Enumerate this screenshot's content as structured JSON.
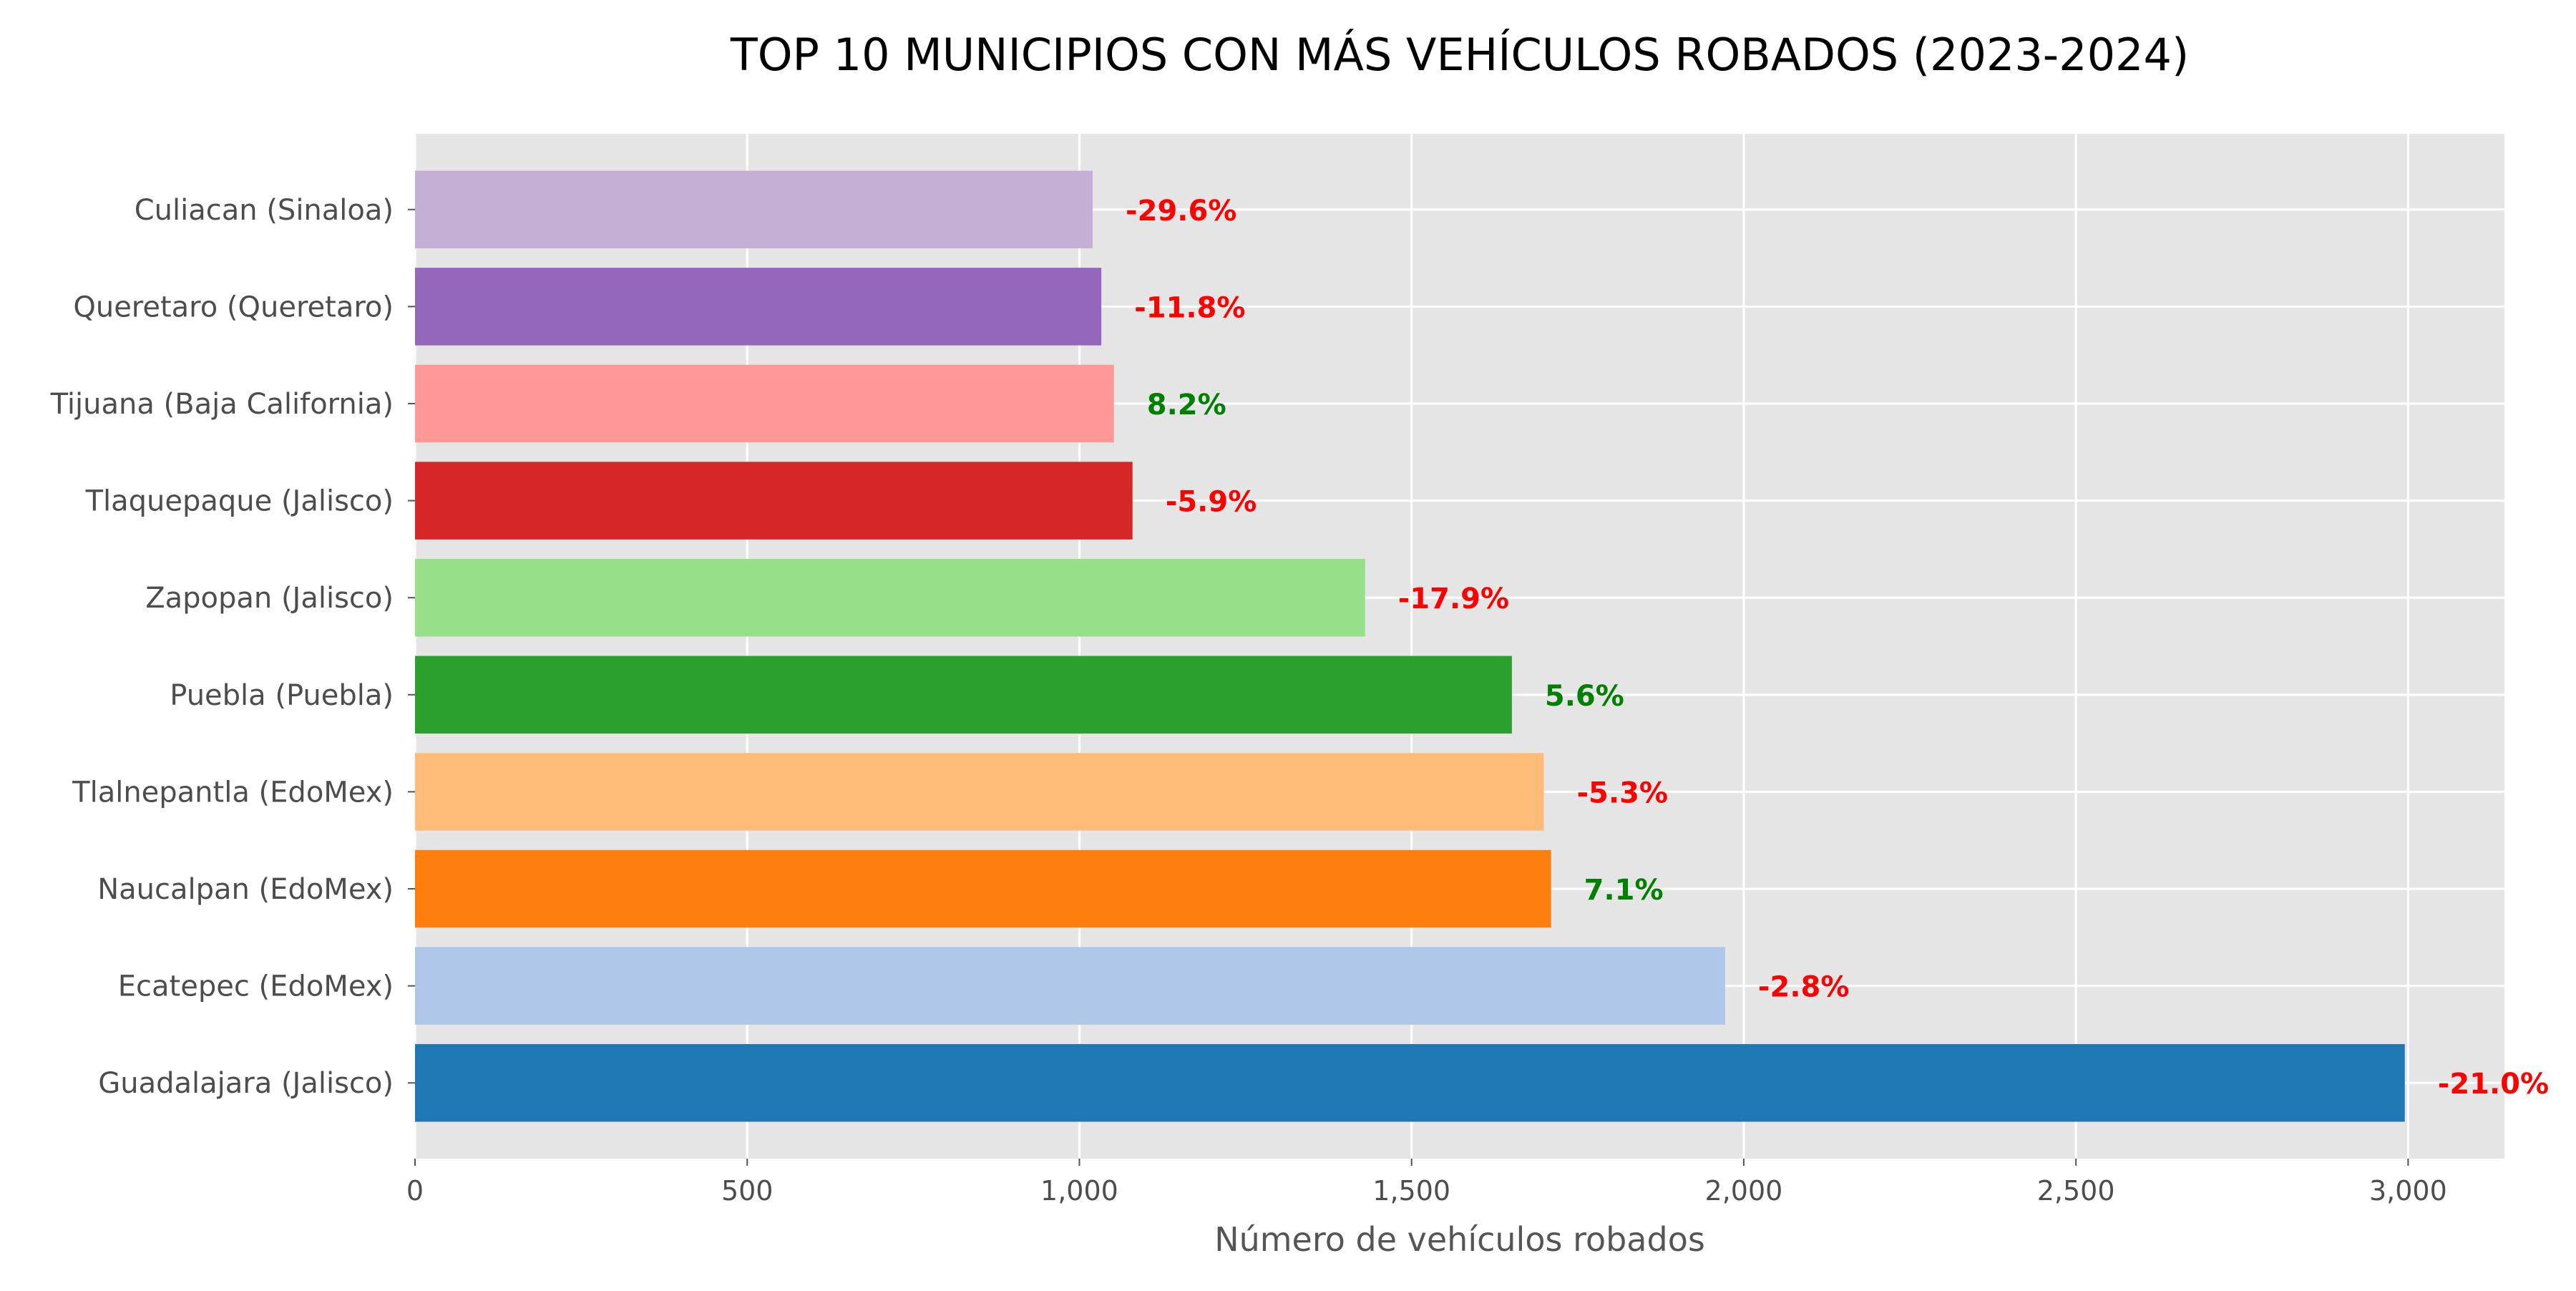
{
  "chart_data": {
    "type": "bar",
    "orientation": "horizontal",
    "title": "TOP 10 MUNICIPIOS CON MÁS VEHÍCULOS ROBADOS (2023-2024)",
    "xlabel": "Número de vehículos robados",
    "ylabel": "",
    "xlim": [
      0,
      3145
    ],
    "x_ticks": [
      0,
      500,
      1000,
      1500,
      2000,
      2500,
      3000
    ],
    "x_tick_labels": [
      "0",
      "500",
      "1,000",
      "1,500",
      "2,000",
      "2,500",
      "3,000"
    ],
    "grid": true,
    "legend": "none",
    "categories": [
      "Guadalajara (Jalisco)",
      "Ecatepec (EdoMex)",
      "Naucalpan (EdoMex)",
      "Tlalnepantla (EdoMex)",
      "Puebla (Puebla)",
      "Zapopan (Jalisco)",
      "Tlaquepaque (Jalisco)",
      "Tijuana (Baja California)",
      "Queretaro (Queretaro)",
      "Culiacan (Sinaloa)"
    ],
    "values": [
      2995,
      1972,
      1710,
      1699,
      1651,
      1430,
      1080,
      1052,
      1033,
      1020
    ],
    "annotations": [
      "-21.0%",
      "-2.8%",
      "7.1%",
      "-5.3%",
      "5.6%",
      "-17.9%",
      "-5.9%",
      "8.2%",
      "-11.8%",
      "-29.6%"
    ],
    "annotation_colors": [
      "#ff0000",
      "#ff0000",
      "#008000",
      "#ff0000",
      "#008000",
      "#ff0000",
      "#ff0000",
      "#008000",
      "#ff0000",
      "#ff0000"
    ],
    "bar_colors": [
      "#1f77b4",
      "#aec7e8",
      "#ff7f0e",
      "#ffbb78",
      "#2ca02c",
      "#98df8a",
      "#d62728",
      "#ff9896",
      "#9467bd",
      "#c5b0d5"
    ],
    "background_color": "#e5e5e5",
    "grid_color": "#ffffff"
  }
}
